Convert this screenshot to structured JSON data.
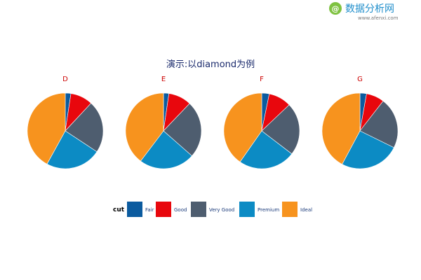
{
  "watermark": {
    "logo_glyph": "@",
    "brand": "数据分析网",
    "url": "www.afenxi.com"
  },
  "colors": {
    "title": "#1a2a6c",
    "facet_label": "#cc0000",
    "legend_label": "#1a3a7a",
    "slice_border": "#ffffff",
    "watermark_logo": "#7fc241"
  },
  "chart_data": {
    "type": "pie",
    "title": "演示:以diamond为例",
    "legend_title": "cut",
    "legend_position": "bottom",
    "categories": [
      "Fair",
      "Good",
      "Very Good",
      "Premium",
      "Ideal"
    ],
    "colors": [
      "#0b5b9f",
      "#e8070d",
      "#4e5d6f",
      "#0c8bc4",
      "#f7931e"
    ],
    "facets": [
      {
        "label": "D",
        "values": [
          2.4,
          9.5,
          22.4,
          23.7,
          42.0
        ]
      },
      {
        "label": "E",
        "values": [
          2.3,
          9.8,
          24.4,
          23.8,
          39.7
        ]
      },
      {
        "label": "F",
        "values": [
          3.2,
          9.7,
          22.5,
          24.3,
          40.3
        ]
      },
      {
        "label": "G",
        "values": [
          2.8,
          7.7,
          21.8,
          25.5,
          42.2
        ]
      }
    ]
  }
}
